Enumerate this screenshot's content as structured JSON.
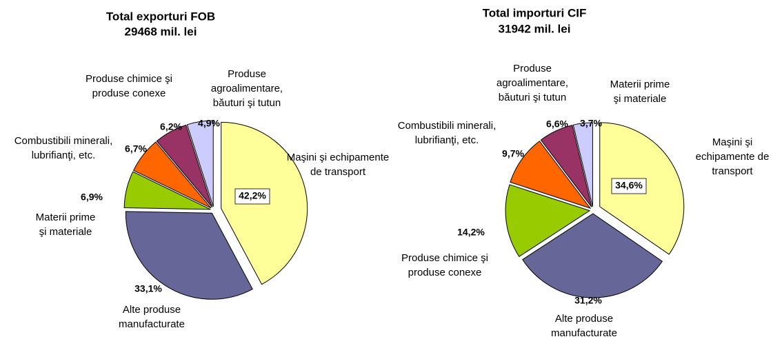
{
  "chart_data": [
    {
      "type": "pie",
      "title": [
        "Total exporturi FOB",
        "29468 mil. lei"
      ],
      "categories": [
        [
          "Maşini şi echipamente",
          "de transport"
        ],
        [
          "Alte produse",
          "manufacturate"
        ],
        [
          "Materii prime",
          "şi materiale"
        ],
        [
          "Combustibili minerali,",
          "lubrifianţi, etc."
        ],
        [
          "Produse chimice şi",
          "produse conexe"
        ],
        [
          "Produse",
          "agroalimentare,",
          "băuturi şi tutun"
        ]
      ],
      "values": [
        42.2,
        33.1,
        6.9,
        6.7,
        6.2,
        4.9
      ],
      "value_labels": [
        "42,2%",
        "33,1%",
        "6,9%",
        "6,7%",
        "6,2%",
        "4,9%"
      ],
      "colors": [
        "#ffff99",
        "#666699",
        "#99cc00",
        "#ff6600",
        "#993366",
        "#ccccff"
      ]
    },
    {
      "type": "pie",
      "title": [
        "Total importuri  CIF",
        "31942 mil. lei"
      ],
      "categories": [
        [
          "Maşini şi",
          "echipamente de",
          "transport"
        ],
        [
          "Alte produse",
          "manufacturate"
        ],
        [
          "Produse chimice şi",
          "produse conexe"
        ],
        [
          "Combustibili minerali,",
          "lubrifianţi, etc."
        ],
        [
          "Produse",
          "agroalimentare,",
          "băuturi şi tutun"
        ],
        [
          "Materii prime",
          "şi materiale"
        ]
      ],
      "values": [
        34.6,
        31.2,
        14.2,
        9.7,
        6.6,
        3.7
      ],
      "value_labels": [
        "34,6%",
        "31,2%",
        "14,2%",
        "9,7%",
        "6,6%",
        "3,7%"
      ],
      "colors": [
        "#ffff99",
        "#666699",
        "#99cc00",
        "#ff6600",
        "#993366",
        "#ccccff"
      ]
    }
  ]
}
